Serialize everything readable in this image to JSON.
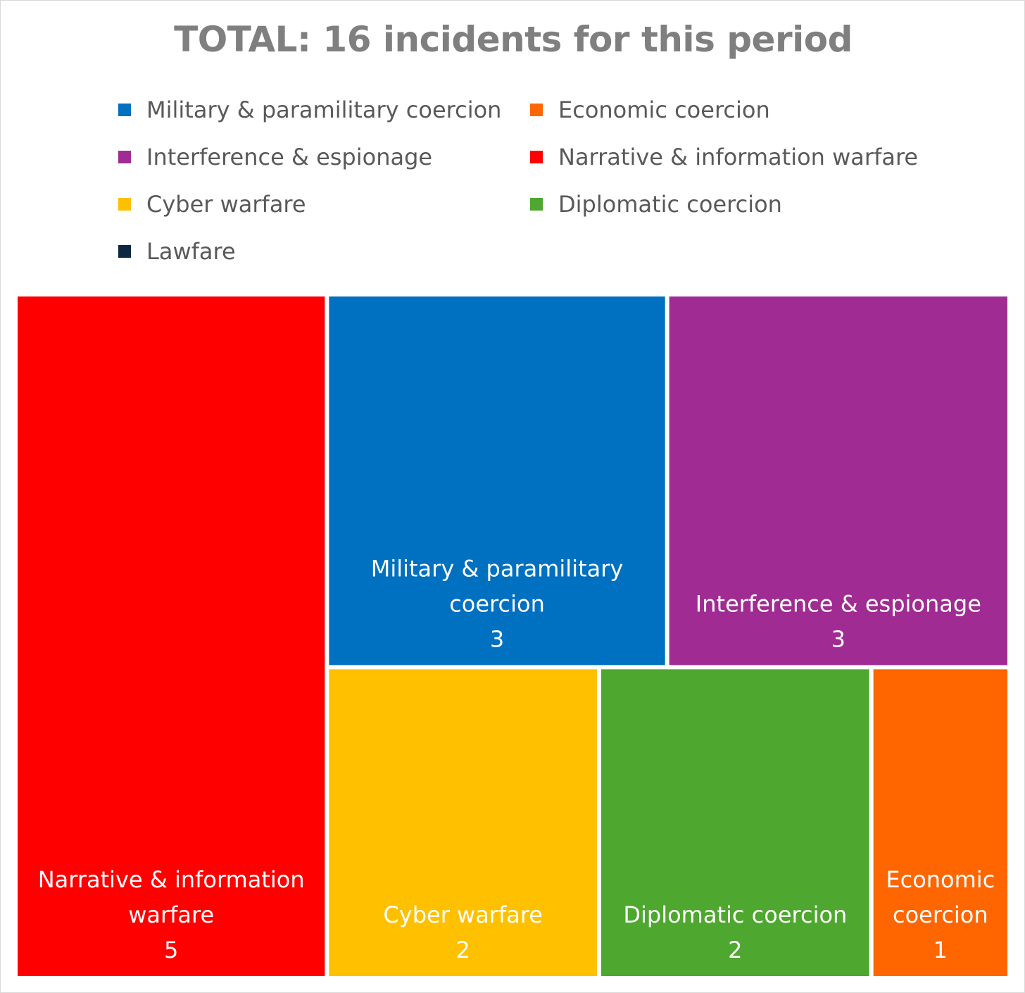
{
  "chart_data": {
    "type": "treemap",
    "title": "TOTAL: 16 incidents for this period",
    "legend": [
      {
        "label": "Military & paramilitary coercion",
        "color": "#0070C0"
      },
      {
        "label": "Economic coercion",
        "color": "#FF6600"
      },
      {
        "label": "Interference & espionage",
        "color": "#A02B93"
      },
      {
        "label": "Narrative & information warfare",
        "color": "#FF0000"
      },
      {
        "label": "Cyber warfare",
        "color": "#FFC000"
      },
      {
        "label": "Diplomatic coercion",
        "color": "#4EA72E"
      },
      {
        "label": "Lawfare",
        "color": "#0E2841"
      }
    ],
    "cells": [
      {
        "category": "Narrative & information warfare",
        "label_lines": [
          "Narrative & information",
          "warfare"
        ],
        "value": 5,
        "color": "#FF0000"
      },
      {
        "category": "Military & paramilitary coercion",
        "label_lines": [
          "Military & paramilitary",
          "coercion"
        ],
        "value": 3,
        "color": "#0070C0"
      },
      {
        "category": "Interference & espionage",
        "label_lines": [
          "Interference & espionage"
        ],
        "value": 3,
        "color": "#A02B93"
      },
      {
        "category": "Cyber warfare",
        "label_lines": [
          "Cyber warfare"
        ],
        "value": 2,
        "color": "#FFC000"
      },
      {
        "category": "Diplomatic coercion",
        "label_lines": [
          "Diplomatic coercion"
        ],
        "value": 2,
        "color": "#4EA72E"
      },
      {
        "category": "Economic coercion",
        "label_lines": [
          "Economic",
          "coercion"
        ],
        "value": 1,
        "color": "#FF6600"
      }
    ]
  }
}
